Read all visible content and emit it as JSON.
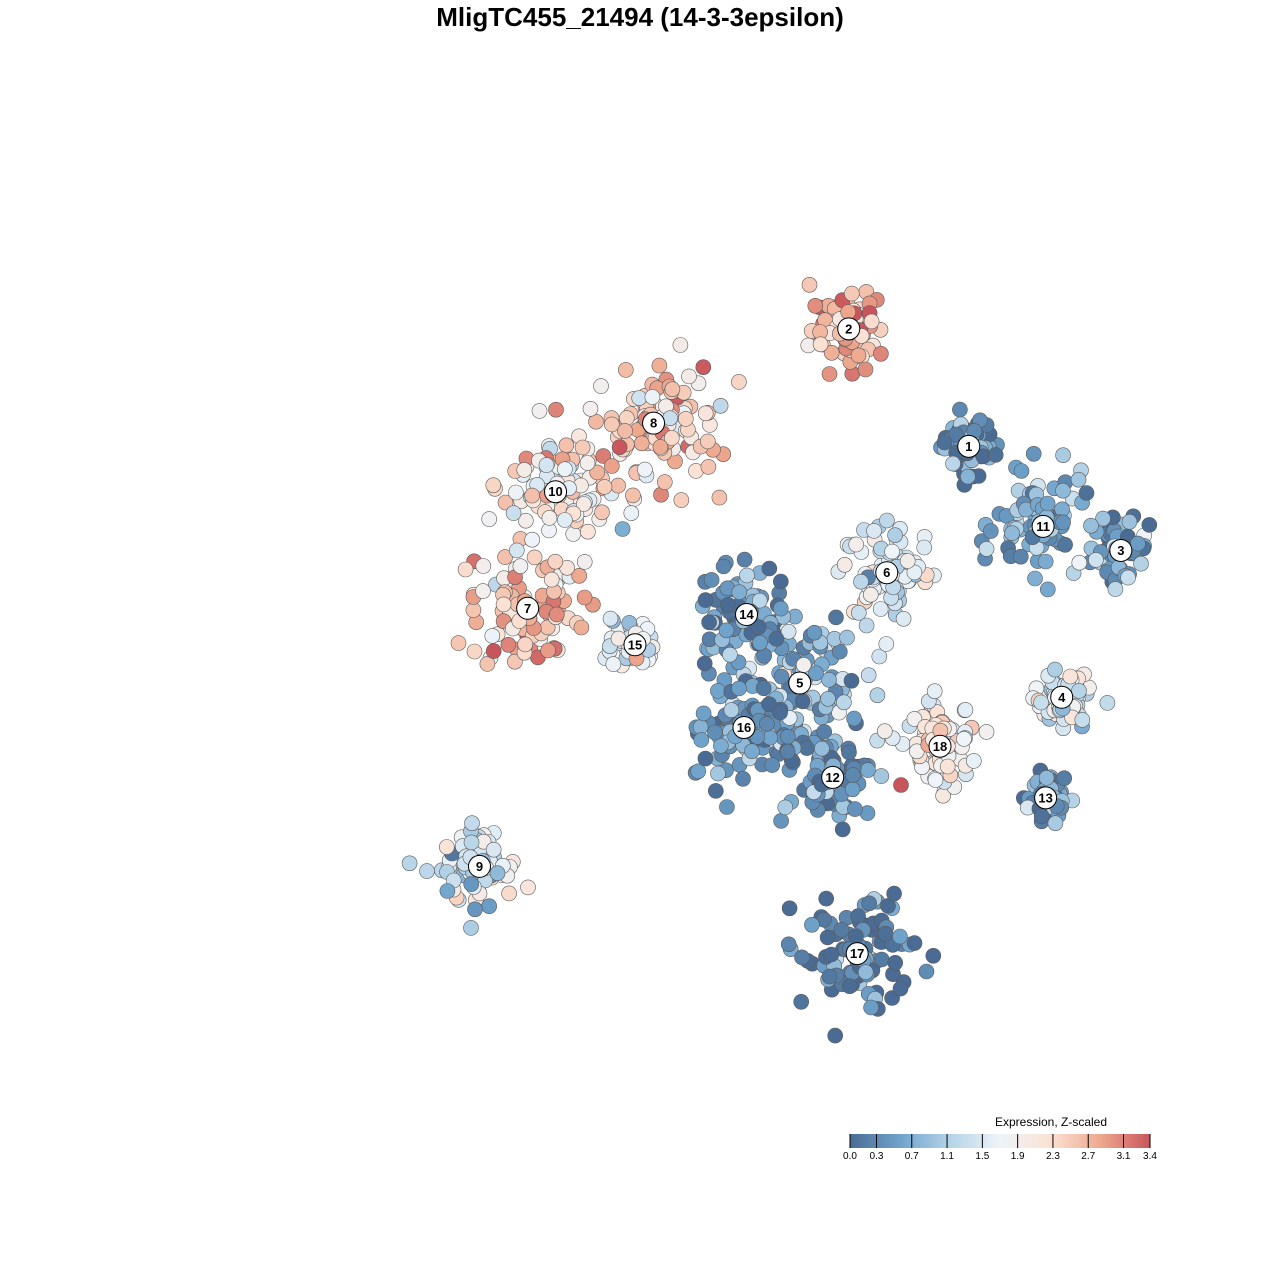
{
  "title": "MligTC455_21494 (14-3-3epsilon)",
  "chart_data": {
    "type": "scatter",
    "title": "MligTC455_21494 (14-3-3epsilon)",
    "xlabel": "",
    "ylabel": "",
    "grid": false,
    "axes_visible": false,
    "point_style": "filled circles with dark grey outline",
    "color_scale": {
      "title": "Expression, Z-scaled",
      "min": 0.0,
      "max": 3.4,
      "ticks": [
        "0.0",
        "0.3",
        "0.7",
        "1.1",
        "1.5",
        "1.9",
        "2.3",
        "2.7",
        "3.1",
        "3.4"
      ],
      "tick_values": [
        0.0,
        0.3,
        0.7,
        1.1,
        1.5,
        1.9,
        2.3,
        2.7,
        3.1,
        3.4
      ],
      "palette": [
        "#4a6c94",
        "#6fa3cc",
        "#b5d3e7",
        "#eef4f9",
        "#fbe2d4",
        "#eea98f",
        "#c9555c"
      ],
      "legend_position": "bottom-right"
    },
    "clusters": [
      {
        "label": "1",
        "x": 0.892,
        "y": 0.712,
        "mean_expr": 0.2,
        "spread": 0.03
      },
      {
        "label": "2",
        "x": 0.75,
        "y": 0.844,
        "mean_expr": 2.7,
        "spread": 0.04
      },
      {
        "label": "3",
        "x": 1.072,
        "y": 0.595,
        "mean_expr": 0.5,
        "spread": 0.03
      },
      {
        "label": "4",
        "x": 1.002,
        "y": 0.43,
        "mean_expr": 1.5,
        "spread": 0.03
      },
      {
        "label": "5",
        "x": 0.692,
        "y": 0.446,
        "mean_expr": 0.8,
        "spread": 0.07
      },
      {
        "label": "6",
        "x": 0.795,
        "y": 0.57,
        "mean_expr": 1.5,
        "spread": 0.05
      },
      {
        "label": "7",
        "x": 0.37,
        "y": 0.53,
        "mean_expr": 2.4,
        "spread": 0.06
      },
      {
        "label": "8",
        "x": 0.519,
        "y": 0.738,
        "mean_expr": 2.4,
        "spread": 0.07
      },
      {
        "label": "9",
        "x": 0.313,
        "y": 0.24,
        "mean_expr": 1.4,
        "spread": 0.04
      },
      {
        "label": "10",
        "x": 0.403,
        "y": 0.661,
        "mean_expr": 2.0,
        "spread": 0.06
      },
      {
        "label": "11",
        "x": 0.98,
        "y": 0.622,
        "mean_expr": 0.6,
        "spread": 0.05
      },
      {
        "label": "12",
        "x": 0.731,
        "y": 0.34,
        "mean_expr": 0.3,
        "spread": 0.04
      },
      {
        "label": "13",
        "x": 0.983,
        "y": 0.317,
        "mean_expr": 0.3,
        "spread": 0.02
      },
      {
        "label": "14",
        "x": 0.629,
        "y": 0.523,
        "mean_expr": 0.4,
        "spread": 0.05
      },
      {
        "label": "15",
        "x": 0.497,
        "y": 0.489,
        "mean_expr": 1.6,
        "spread": 0.025
      },
      {
        "label": "16",
        "x": 0.626,
        "y": 0.396,
        "mean_expr": 0.4,
        "spread": 0.06
      },
      {
        "label": "17",
        "x": 0.76,
        "y": 0.142,
        "mean_expr": 0.15,
        "spread": 0.06
      },
      {
        "label": "18",
        "x": 0.858,
        "y": 0.375,
        "mean_expr": 1.8,
        "spread": 0.04
      }
    ]
  }
}
